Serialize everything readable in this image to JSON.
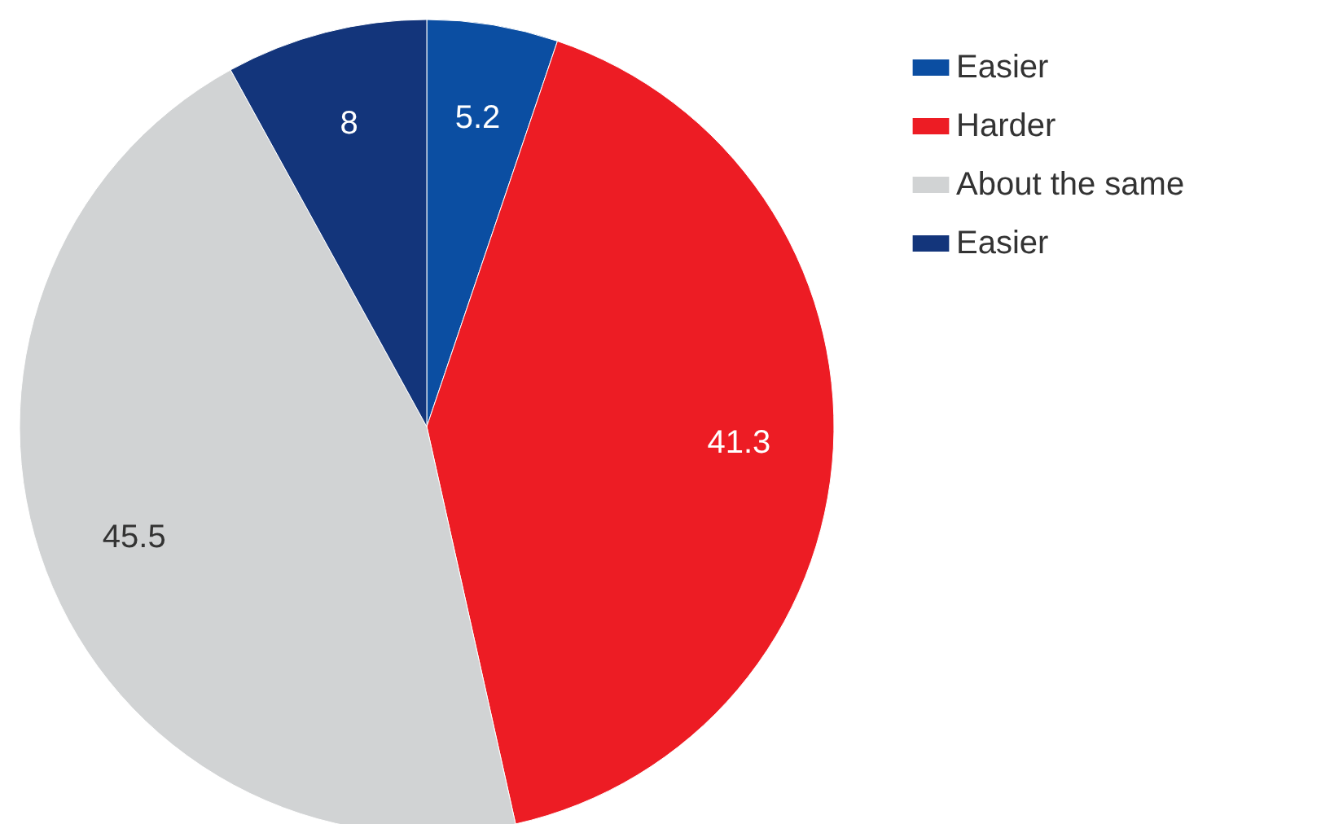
{
  "chart_data": {
    "type": "pie",
    "categories": [
      "Easier",
      "Harder",
      "About the same",
      "Easier"
    ],
    "values": [
      5.2,
      41.3,
      45.5,
      8
    ],
    "colors": [
      "#0b4ea2",
      "#ed1c24",
      "#d1d3d4",
      "#13357b"
    ],
    "data_labels": true,
    "legend": "top right"
  }
}
